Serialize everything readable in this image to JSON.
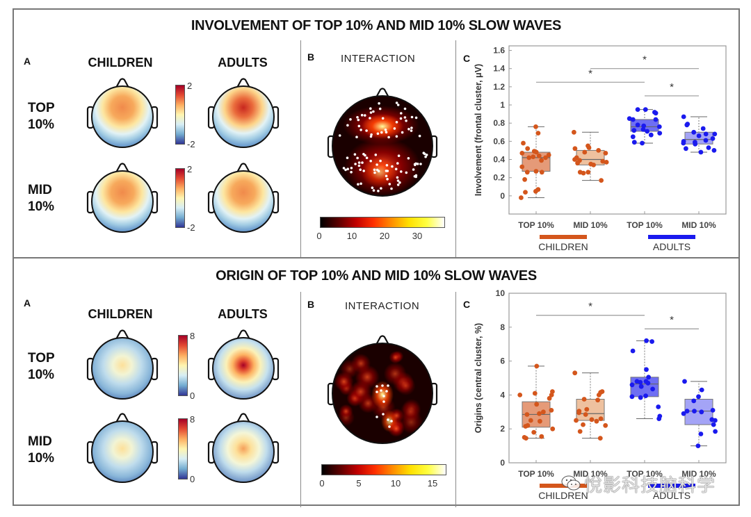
{
  "figure": {
    "sections": [
      {
        "title": "INVOLVEMENT OF TOP 10% AND MID 10% SLOW WAVES",
        "panel_a": {
          "letter": "A",
          "columns": [
            "CHILDREN",
            "ADULTS"
          ],
          "rows": [
            {
              "line1": "TOP",
              "line2": "10%"
            },
            {
              "line1": "MID",
              "line2": "10%"
            }
          ],
          "colorbar": {
            "max": "2",
            "min": "-2",
            "colormap": "diverging-blue-red"
          },
          "maps": [
            {
              "group": "children",
              "row": "top",
              "peak": "frontal",
              "intensity": 0.72
            },
            {
              "group": "adults",
              "row": "top",
              "peak": "frontal",
              "intensity": 0.92
            },
            {
              "group": "children",
              "row": "mid",
              "peak": "frontal",
              "intensity": 0.68
            },
            {
              "group": "adults",
              "row": "mid",
              "peak": "frontal",
              "intensity": 0.8
            }
          ]
        },
        "panel_b": {
          "letter": "B",
          "title": "INTERACTION",
          "colorbar": {
            "ticks": [
              "0",
              "10",
              "20",
              "30"
            ],
            "max_value": 38,
            "colormap": "hot"
          },
          "hotspots": "frontal and central-parietal clusters"
        },
        "panel_c": {
          "letter": "C",
          "ylabel": "Involvement (frontal cluster, μV)",
          "yticks": [
            "0",
            "0.2",
            "0.4",
            "0.6",
            "0.8",
            "1",
            "1.2",
            "1.4",
            "1.6"
          ],
          "xticks": [
            "TOP 10%",
            "MID 10%",
            "TOP 10%",
            "MID 10%"
          ],
          "groups": [
            {
              "label": "CHILDREN",
              "color": "#d4561c"
            },
            {
              "label": "ADULTS",
              "color": "#1a1aee"
            }
          ],
          "significance": [
            "*",
            "*",
            "*"
          ]
        }
      },
      {
        "title": "ORIGIN OF TOP 10% AND MID 10% SLOW WAVES",
        "panel_a": {
          "letter": "A",
          "columns": [
            "CHILDREN",
            "ADULTS"
          ],
          "rows": [
            {
              "line1": "TOP",
              "line2": "10%"
            },
            {
              "line1": "MID",
              "line2": "10%"
            }
          ],
          "colorbar": {
            "max": "8",
            "min": "0",
            "colormap": "diverging-blue-red"
          },
          "maps": [
            {
              "group": "children",
              "row": "top",
              "peak": "central",
              "intensity": 0.6
            },
            {
              "group": "adults",
              "row": "top",
              "peak": "central",
              "intensity": 0.95
            },
            {
              "group": "children",
              "row": "mid",
              "peak": "central",
              "intensity": 0.5
            },
            {
              "group": "adults",
              "row": "mid",
              "peak": "central",
              "intensity": 0.65
            }
          ]
        },
        "panel_b": {
          "letter": "B",
          "title": "INTERACTION",
          "colorbar": {
            "ticks": [
              "0",
              "5",
              "10",
              "15"
            ],
            "max_value": 17,
            "colormap": "hot"
          },
          "hotspots": "central midline cluster"
        },
        "panel_c": {
          "letter": "C",
          "ylabel": "Origins (central cluster, %)",
          "yticks": [
            "0",
            "2",
            "4",
            "6",
            "8",
            "10"
          ],
          "xticks": [
            "TOP 10%",
            "MID 10%",
            "TOP 10%",
            "MID 10%"
          ],
          "groups": [
            {
              "label": "CHILDREN",
              "color": "#d4561c"
            },
            {
              "label": "ADULTS",
              "color": "#1a1aee"
            }
          ],
          "significance": [
            "*",
            "*"
          ]
        }
      }
    ],
    "watermark": "悅影科技脑科学"
  },
  "chart_data": [
    {
      "type": "box",
      "title": "Involvement (frontal cluster)",
      "xlabel": "",
      "ylabel": "Involvement (frontal cluster, μV)",
      "ylim": [
        -0.2,
        1.65
      ],
      "yticks": [
        0,
        0.2,
        0.4,
        0.6,
        0.8,
        1,
        1.2,
        1.4,
        1.6
      ],
      "categories": [
        "TOP 10%",
        "MID 10%",
        "TOP 10%",
        "MID 10%"
      ],
      "group_labels": [
        "CHILDREN",
        "CHILDREN",
        "ADULTS",
        "ADULTS"
      ],
      "legend": "bottom",
      "grid": false,
      "series": [
        {
          "name": "Children TOP 10%",
          "color": "#d4561c",
          "fill": "#e59a78",
          "whisker_low": -0.02,
          "q1": 0.27,
          "median": 0.42,
          "q3": 0.48,
          "whisker_high": 0.76,
          "points": [
            0.76,
            0.69,
            0.58,
            0.52,
            0.49,
            0.48,
            0.47,
            0.45,
            0.44,
            0.43,
            0.42,
            0.42,
            0.39,
            0.32,
            0.27,
            0.26,
            0.26,
            0.18,
            0.07,
            0.05,
            0.04,
            -0.02
          ]
        },
        {
          "name": "Children MID 10%",
          "color": "#d4561c",
          "fill": "#eec19f",
          "whisker_low": 0.17,
          "q1": 0.34,
          "median": 0.4,
          "q3": 0.5,
          "whisker_high": 0.7,
          "points": [
            0.7,
            0.55,
            0.53,
            0.52,
            0.5,
            0.48,
            0.47,
            0.42,
            0.4,
            0.39,
            0.38,
            0.37,
            0.36,
            0.35,
            0.34,
            0.26,
            0.26,
            0.25,
            0.17
          ]
        },
        {
          "name": "Adults TOP 10%",
          "color": "#1a1aee",
          "fill": "#6f6ff2",
          "whisker_low": 0.58,
          "q1": 0.71,
          "median": 0.76,
          "q3": 0.84,
          "whisker_high": 0.95,
          "points": [
            0.95,
            0.95,
            0.92,
            0.91,
            0.85,
            0.84,
            0.84,
            0.78,
            0.77,
            0.76,
            0.73,
            0.72,
            0.71,
            0.69,
            0.67,
            0.65,
            0.59,
            0.58
          ]
        },
        {
          "name": "Adults MID 10%",
          "color": "#1a1aee",
          "fill": "#a4a4f6",
          "whisker_low": 0.48,
          "q1": 0.57,
          "median": 0.62,
          "q3": 0.7,
          "whisker_high": 0.87,
          "points": [
            0.87,
            0.79,
            0.78,
            0.74,
            0.7,
            0.68,
            0.68,
            0.66,
            0.63,
            0.61,
            0.6,
            0.59,
            0.58,
            0.57,
            0.53,
            0.52,
            0.5,
            0.48
          ]
        }
      ],
      "significance": [
        {
          "from": 0,
          "to": 2,
          "y": 1.25,
          "label": "*"
        },
        {
          "from": 1,
          "to": 3,
          "y": 1.4,
          "label": "*"
        },
        {
          "from": 2,
          "to": 3,
          "y": 1.1,
          "label": "*"
        }
      ]
    },
    {
      "type": "box",
      "title": "Origins (central cluster)",
      "xlabel": "",
      "ylabel": "Origins (central cluster, %)",
      "ylim": [
        0,
        10
      ],
      "yticks": [
        0,
        2,
        4,
        6,
        8,
        10
      ],
      "categories": [
        "TOP 10%",
        "MID 10%",
        "TOP 10%",
        "MID 10%"
      ],
      "group_labels": [
        "CHILDREN",
        "CHILDREN",
        "ADULTS",
        "ADULTS"
      ],
      "legend": "bottom",
      "grid": false,
      "series": [
        {
          "name": "Children TOP 10%",
          "color": "#d4561c",
          "fill": "#e59a78",
          "whisker_low": 1.45,
          "q1": 2.1,
          "median": 2.85,
          "q3": 3.6,
          "whisker_high": 5.7,
          "points": [
            5.7,
            4.2,
            4.1,
            4.0,
            4.0,
            3.8,
            3.45,
            3.1,
            3.0,
            2.9,
            2.85,
            2.5,
            2.45,
            2.2,
            2.15,
            2.0,
            1.8,
            1.55,
            1.5,
            1.45
          ]
        },
        {
          "name": "Children MID 10%",
          "color": "#d4561c",
          "fill": "#eec19f",
          "whisker_low": 1.45,
          "q1": 2.5,
          "median": 2.9,
          "q3": 3.75,
          "whisker_high": 5.3,
          "points": [
            5.3,
            4.2,
            4.15,
            4.0,
            3.75,
            3.7,
            3.15,
            3.05,
            2.95,
            2.85,
            2.6,
            2.55,
            2.5,
            2.45,
            2.25,
            2.2,
            1.85,
            1.45
          ]
        },
        {
          "name": "Adults TOP 10%",
          "color": "#1a1aee",
          "fill": "#6f6ff2",
          "whisker_low": 2.6,
          "q1": 3.9,
          "median": 4.65,
          "q3": 5.05,
          "whisker_high": 7.2,
          "points": [
            7.2,
            7.15,
            6.6,
            5.5,
            5.05,
            4.8,
            4.8,
            4.75,
            4.7,
            4.6,
            4.5,
            4.35,
            3.95,
            3.9,
            3.85,
            3.3,
            2.75,
            2.6
          ]
        },
        {
          "name": "Adults MID 10%",
          "color": "#1a1aee",
          "fill": "#a4a4f6",
          "whisker_low": 1.0,
          "q1": 2.25,
          "median": 3.05,
          "q3": 3.75,
          "whisker_high": 4.8,
          "points": [
            4.8,
            4.3,
            3.9,
            3.65,
            3.1,
            3.05,
            3.05,
            3.0,
            2.9,
            2.55,
            2.5,
            2.25,
            1.85,
            1.7,
            1.0
          ]
        }
      ],
      "significance": [
        {
          "from": 0,
          "to": 2,
          "y": 8.7,
          "label": "*"
        },
        {
          "from": 2,
          "to": 3,
          "y": 7.9,
          "label": "*"
        }
      ]
    }
  ]
}
